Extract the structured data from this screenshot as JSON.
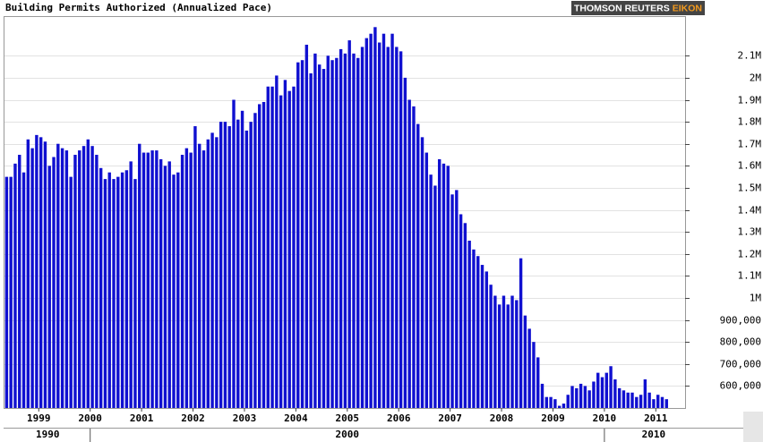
{
  "chart_data": {
    "type": "bar",
    "title": "Building Permits Authorized (Annualized Pace)",
    "logo": {
      "brand": "THOMSON REUTERS",
      "product": "EIKON"
    },
    "color": "#1010d0",
    "categories": [
      null,
      null,
      null,
      null,
      null,
      null,
      null,
      null,
      "1999",
      null,
      null,
      null,
      null,
      null,
      null,
      null,
      null,
      null,
      null,
      null,
      "2000",
      null,
      null,
      null,
      null,
      null,
      null,
      null,
      null,
      null,
      null,
      null,
      "2001",
      null,
      null,
      null,
      null,
      null,
      null,
      null,
      null,
      null,
      null,
      null,
      "2002",
      null,
      null,
      null,
      null,
      null,
      null,
      null,
      null,
      null,
      null,
      null,
      "2003",
      null,
      null,
      null,
      null,
      null,
      null,
      null,
      null,
      null,
      null,
      null,
      "2004",
      null,
      null,
      null,
      null,
      null,
      null,
      null,
      null,
      null,
      null,
      null,
      "2005",
      null,
      null,
      null,
      null,
      null,
      null,
      null,
      null,
      null,
      null,
      null,
      "2006",
      null,
      null,
      null,
      null,
      null,
      null,
      null,
      null,
      null,
      null,
      null,
      "2007",
      null,
      null,
      null,
      null,
      null,
      null,
      null,
      null,
      null,
      null,
      null,
      "2008",
      null,
      null,
      null,
      null,
      null,
      null,
      null,
      null,
      null,
      null,
      null,
      "2009",
      null,
      null,
      null,
      null,
      null,
      null,
      null,
      null,
      null,
      null,
      null,
      "2010",
      null,
      null,
      null,
      null,
      null,
      null,
      null,
      null,
      null,
      null,
      null,
      "2011",
      null,
      null
    ],
    "values": [
      1550000,
      1550000,
      1610000,
      1650000,
      1570000,
      1720000,
      1680000,
      1740000,
      1730000,
      1710000,
      1600000,
      1640000,
      1700000,
      1680000,
      1670000,
      1550000,
      1650000,
      1670000,
      1690000,
      1720000,
      1690000,
      1650000,
      1590000,
      1540000,
      1570000,
      1540000,
      1550000,
      1570000,
      1580000,
      1620000,
      1540000,
      1700000,
      1660000,
      1660000,
      1670000,
      1670000,
      1630000,
      1600000,
      1620000,
      1560000,
      1570000,
      1650000,
      1680000,
      1660000,
      1780000,
      1700000,
      1670000,
      1720000,
      1750000,
      1730000,
      1800000,
      1800000,
      1780000,
      1900000,
      1810000,
      1850000,
      1760000,
      1800000,
      1840000,
      1880000,
      1890000,
      1960000,
      1960000,
      2010000,
      1920000,
      1990000,
      1940000,
      1960000,
      2070000,
      2080000,
      2150000,
      2020000,
      2110000,
      2060000,
      2040000,
      2100000,
      2080000,
      2090000,
      2130000,
      2110000,
      2170000,
      2110000,
      2090000,
      2140000,
      2180000,
      2200000,
      2230000,
      2160000,
      2200000,
      2140000,
      2200000,
      2140000,
      2120000,
      2000000,
      1900000,
      1870000,
      1790000,
      1730000,
      1660000,
      1560000,
      1510000,
      1630000,
      1610000,
      1600000,
      1470000,
      1490000,
      1380000,
      1340000,
      1260000,
      1220000,
      1190000,
      1150000,
      1120000,
      1060000,
      1010000,
      970000,
      1010000,
      970000,
      1010000,
      990000,
      1180000,
      920000,
      860000,
      800000,
      730000,
      610000,
      550000,
      550000,
      540000,
      510000,
      520000,
      560000,
      600000,
      590000,
      610000,
      600000,
      580000,
      620000,
      660000,
      640000,
      660000,
      690000,
      630000,
      590000,
      580000,
      570000,
      570000,
      550000,
      560000,
      630000,
      570000,
      540000,
      560000,
      550000,
      540000
    ],
    "decade_labels": [
      "1990",
      "2000",
      "2010"
    ],
    "ylim": [
      500000,
      2280000
    ],
    "yticks": [
      {
        "value": 600000,
        "label": "600,000"
      },
      {
        "value": 700000,
        "label": "700,000"
      },
      {
        "value": 800000,
        "label": "800,000"
      },
      {
        "value": 900000,
        "label": "900,000"
      },
      {
        "value": 1000000,
        "label": "1M"
      },
      {
        "value": 1100000,
        "label": "1.1M"
      },
      {
        "value": 1200000,
        "label": "1.2M"
      },
      {
        "value": 1300000,
        "label": "1.3M"
      },
      {
        "value": 1400000,
        "label": "1.4M"
      },
      {
        "value": 1500000,
        "label": "1.5M"
      },
      {
        "value": 1600000,
        "label": "1.6M"
      },
      {
        "value": 1700000,
        "label": "1.7M"
      },
      {
        "value": 1800000,
        "label": "1.8M"
      },
      {
        "value": 1900000,
        "label": "1.9M"
      },
      {
        "value": 2000000,
        "label": "2M"
      },
      {
        "value": 2100000,
        "label": "2.1M"
      }
    ],
    "grid": true
  }
}
